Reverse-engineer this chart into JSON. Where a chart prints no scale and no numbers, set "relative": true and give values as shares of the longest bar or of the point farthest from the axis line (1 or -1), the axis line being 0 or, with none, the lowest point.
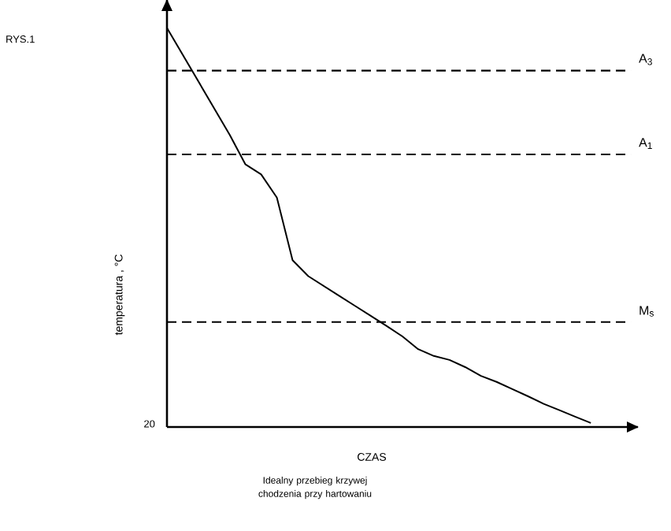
{
  "chart_data": {
    "type": "line",
    "title": "RYS.1",
    "xlabel": "CZAS",
    "ylabel": "temperatura , °C",
    "relative": true,
    "categories": [
      null,
      null,
      null,
      null,
      null,
      null,
      null,
      null,
      null,
      null,
      null,
      null,
      null,
      null,
      null,
      null,
      null,
      null,
      null,
      null,
      null,
      null,
      null,
      null,
      null,
      null,
      null,
      null
    ],
    "values": [
      1.0,
      0.933,
      0.866,
      0.799,
      0.732,
      0.658,
      0.633,
      0.575,
      0.418,
      0.378,
      0.353,
      0.328,
      0.303,
      0.278,
      0.253,
      0.227,
      0.195,
      0.178,
      0.168,
      0.15,
      0.128,
      0.113,
      0.095,
      0.077,
      0.058,
      0.042,
      0.026,
      0.01
    ],
    "color": "#000000",
    "ref_lines": [
      {
        "axis": "y",
        "value": 0.893,
        "label": "A$_{3}$",
        "line_style": "dashed",
        "color": "#000000"
      },
      {
        "axis": "y",
        "value": 0.683,
        "label": "A$_{1}$",
        "line_style": "dashed",
        "color": "#000000"
      },
      {
        "axis": "y",
        "value": 0.263,
        "label": "M$_{s}$",
        "line_style": "dashed",
        "color": "#000000"
      }
    ],
    "annotations": [
      "20",
      "Idealny przebieg krzywej chodzenia przy hartowaniu"
    ]
  }
}
